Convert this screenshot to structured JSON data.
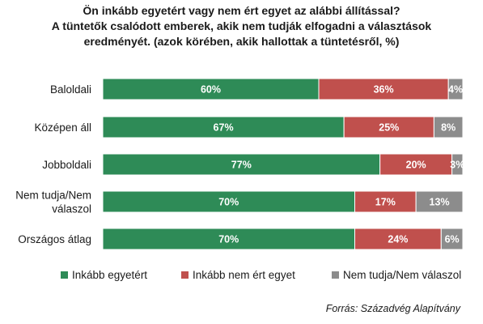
{
  "title": {
    "line1": "Ön inkább egyetért vagy nem ért egyet az alábbi állítással?",
    "line2": "A tüntetők csalódott emberek, akik nem tudják elfogadni a választások",
    "line3": "eredményét. (azok körében, akik hallottak a tüntetésről, %)"
  },
  "colors": {
    "agree": "#2e8b57",
    "disagree": "#c0504d",
    "dontknow": "#8c8c8c"
  },
  "chart_data": {
    "type": "bar",
    "orientation": "horizontal",
    "stacked": true,
    "categories": [
      [
        "Baloldali"
      ],
      [
        "Középen áll"
      ],
      [
        "Jobboldali"
      ],
      [
        "Nem tudja/Nem",
        "válaszol"
      ],
      [
        "Országos átlag"
      ]
    ],
    "series": [
      {
        "name": "Inkább egyetért",
        "values": [
          60,
          67,
          77,
          70,
          70
        ],
        "labels": [
          "60%",
          "67%",
          "77%",
          "70%",
          "70%"
        ]
      },
      {
        "name": "Inkább nem ért egyet",
        "values": [
          36,
          25,
          20,
          17,
          24
        ],
        "labels": [
          "36%",
          "25%",
          "20%",
          "17%",
          "24%"
        ]
      },
      {
        "name": "Nem tudja/Nem válaszol",
        "values": [
          4,
          8,
          3,
          13,
          6
        ],
        "labels": [
          "4%",
          "8%",
          "3%",
          "13%",
          "6%"
        ]
      }
    ],
    "xlim": [
      0,
      100
    ]
  },
  "legend": {
    "agree": "Inkább egyetért",
    "disagree": "Inkább nem ért egyet",
    "dontknow": "Nem tudja/Nem válaszol"
  },
  "source": "Forrás: Századvég Alapítvány"
}
